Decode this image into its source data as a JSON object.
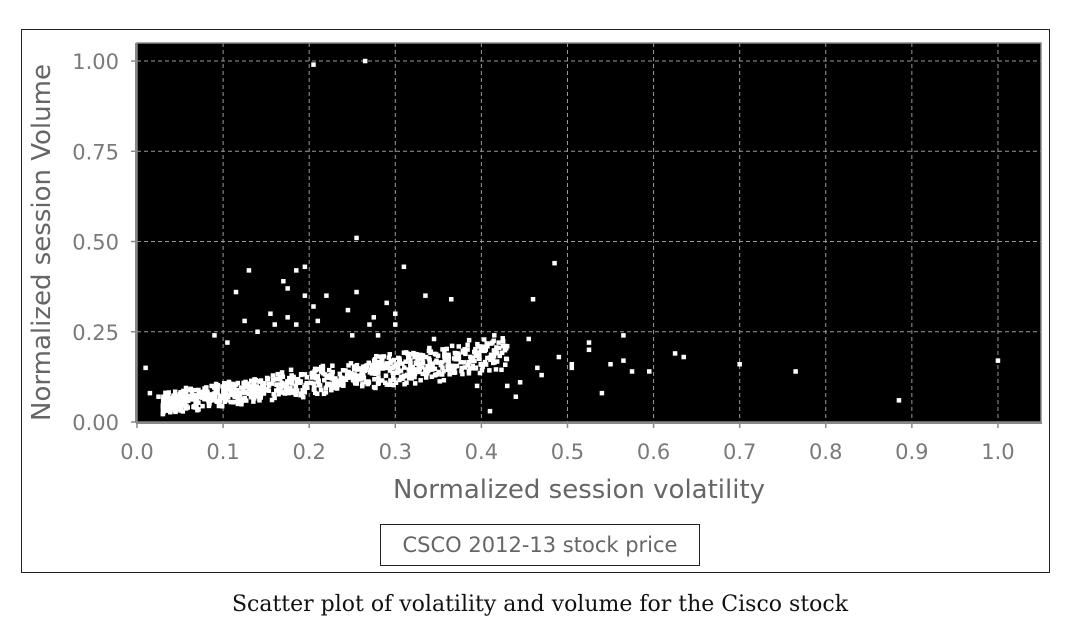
{
  "caption": "Scatter plot of volatility and volume for the Cisco stock",
  "chart_data": {
    "type": "scatter",
    "title": "",
    "xlabel": "Normalized session volatility",
    "ylabel": "Normalized session Volume",
    "xlim": [
      0.0,
      1.05
    ],
    "ylim": [
      0.0,
      1.05
    ],
    "xticks": [
      "0.0",
      "0.1",
      "0.2",
      "0.3",
      "0.4",
      "0.5",
      "0.6",
      "0.7",
      "0.8",
      "0.9",
      "1.0"
    ],
    "yticks": [
      "0.00",
      "0.25",
      "0.50",
      "0.75",
      "1.00"
    ],
    "grid": true,
    "background": "#000000",
    "point_color": "#ffffff",
    "legend_position": "bottom-center",
    "series": [
      {
        "name": "CSCO 2012-13 stock price",
        "points": [
          [
            0.205,
            0.99
          ],
          [
            0.265,
            1.0
          ],
          [
            0.255,
            0.51
          ],
          [
            0.485,
            0.44
          ],
          [
            0.31,
            0.43
          ],
          [
            0.13,
            0.42
          ],
          [
            0.195,
            0.43
          ],
          [
            0.185,
            0.42
          ],
          [
            0.17,
            0.39
          ],
          [
            0.175,
            0.37
          ],
          [
            0.115,
            0.36
          ],
          [
            0.255,
            0.36
          ],
          [
            0.195,
            0.35
          ],
          [
            0.22,
            0.35
          ],
          [
            0.335,
            0.35
          ],
          [
            0.365,
            0.34
          ],
          [
            0.46,
            0.34
          ],
          [
            0.29,
            0.33
          ],
          [
            0.155,
            0.3
          ],
          [
            0.275,
            0.29
          ],
          [
            0.3,
            0.3
          ],
          [
            0.175,
            0.29
          ],
          [
            0.205,
            0.32
          ],
          [
            0.245,
            0.31
          ],
          [
            0.125,
            0.28
          ],
          [
            0.185,
            0.27
          ],
          [
            0.16,
            0.27
          ],
          [
            0.21,
            0.28
          ],
          [
            0.27,
            0.27
          ],
          [
            0.3,
            0.27
          ],
          [
            0.415,
            0.24
          ],
          [
            0.565,
            0.24
          ],
          [
            0.525,
            0.22
          ],
          [
            0.455,
            0.23
          ],
          [
            0.09,
            0.24
          ],
          [
            0.14,
            0.25
          ],
          [
            0.105,
            0.22
          ],
          [
            0.25,
            0.24
          ],
          [
            0.28,
            0.24
          ],
          [
            0.345,
            0.23
          ],
          [
            0.43,
            0.21
          ],
          [
            0.49,
            0.18
          ],
          [
            0.525,
            0.2
          ],
          [
            0.625,
            0.19
          ],
          [
            0.565,
            0.17
          ],
          [
            0.635,
            0.18
          ],
          [
            0.505,
            0.16
          ],
          [
            0.505,
            0.15
          ],
          [
            0.55,
            0.16
          ],
          [
            0.575,
            0.14
          ],
          [
            0.595,
            0.14
          ],
          [
            0.7,
            0.16
          ],
          [
            0.765,
            0.14
          ],
          [
            1.0,
            0.17
          ],
          [
            0.885,
            0.06
          ],
          [
            0.54,
            0.08
          ],
          [
            0.445,
            0.11
          ],
          [
            0.43,
            0.1
          ],
          [
            0.395,
            0.1
          ],
          [
            0.41,
            0.03
          ],
          [
            0.44,
            0.07
          ],
          [
            0.47,
            0.13
          ],
          [
            0.01,
            0.15
          ],
          [
            0.015,
            0.08
          ],
          [
            0.025,
            0.07
          ],
          [
            0.465,
            0.15
          ]
        ],
        "cluster": {
          "count": 900,
          "x_range": [
            0.03,
            0.43
          ],
          "base_intercept": 0.02,
          "base_slope": 0.28,
          "spread_intercept": 0.05,
          "spread_slope": 0.1
        }
      }
    ]
  }
}
